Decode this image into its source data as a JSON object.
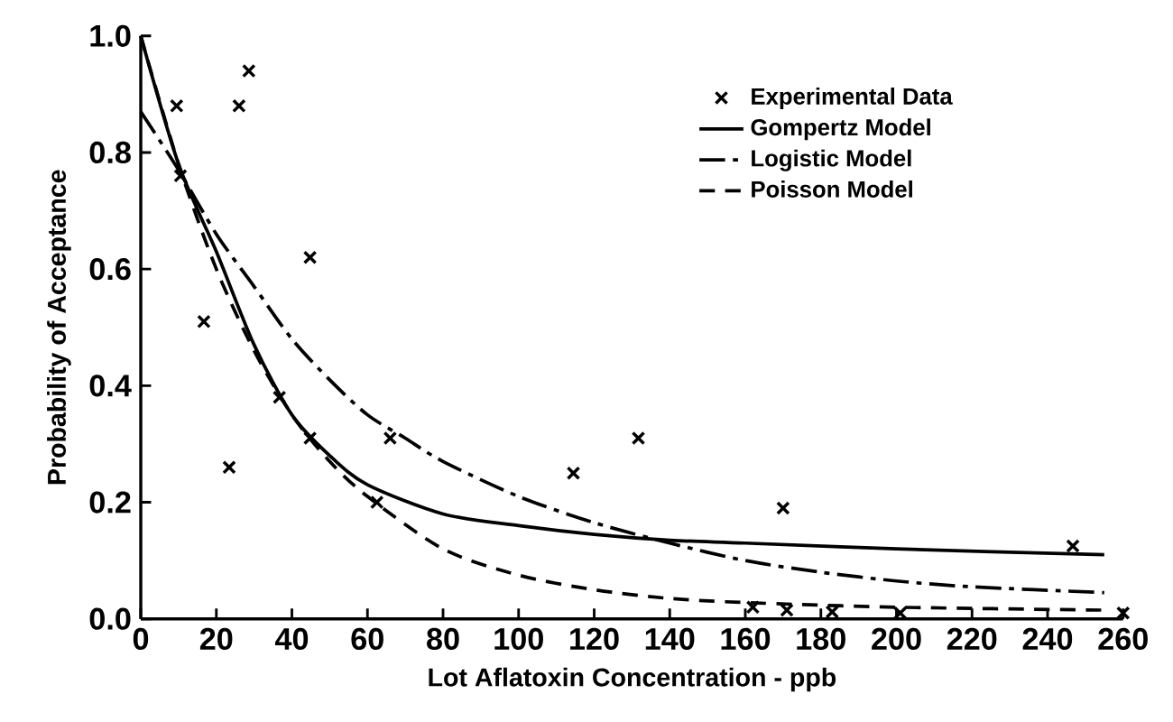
{
  "chart_data": {
    "type": "line",
    "xlabel": "Lot Aflatoxin Concentration - ppb",
    "ylabel": "Probability of Acceptance",
    "xlim": [
      0,
      260
    ],
    "ylim": [
      0,
      1.0
    ],
    "xticks": [
      0,
      20,
      40,
      60,
      80,
      100,
      120,
      140,
      160,
      180,
      200,
      220,
      240,
      260
    ],
    "yticks": [
      {
        "value": 0,
        "label": "0.0"
      },
      {
        "value": 0.2,
        "label": "0.2"
      },
      {
        "value": 0.4,
        "label": "0.4"
      },
      {
        "value": 0.6,
        "label": "0.6"
      },
      {
        "value": 0.8,
        "label": "0.8"
      },
      {
        "value": 1.0,
        "label": "1.0"
      }
    ],
    "legend": "top right",
    "grid": false,
    "series": [
      {
        "name": "Experimental Data",
        "type": "scatter",
        "marker": "cross",
        "color": "#000000",
        "x": [
          9.5,
          10.5,
          16.7,
          23.4,
          26,
          28.6,
          36.7,
          44.8,
          44.8,
          62.5,
          66,
          114.5,
          131.7,
          162,
          170,
          171,
          183,
          201,
          246.7,
          260
        ],
        "values": [
          0.88,
          0.76,
          0.51,
          0.26,
          0.88,
          0.94,
          0.38,
          0.62,
          0.31,
          0.2,
          0.31,
          0.25,
          0.31,
          0.02,
          0.19,
          0.015,
          0.012,
          0.01,
          0.125,
          0.01
        ]
      },
      {
        "name": "Gompertz Model",
        "line_style": "solid",
        "color": "#000000",
        "x": [
          0,
          10,
          20,
          30,
          40,
          50,
          60,
          80,
          100,
          120,
          140,
          160,
          200,
          255
        ],
        "values": [
          1.0,
          0.78,
          0.63,
          0.47,
          0.35,
          0.28,
          0.23,
          0.18,
          0.16,
          0.145,
          0.135,
          0.13,
          0.12,
          0.11
        ]
      },
      {
        "name": "Logistic Model",
        "line_style": "dashdot",
        "color": "#000000",
        "x": [
          0,
          10,
          20,
          30,
          40,
          50,
          60,
          70,
          80,
          100,
          120,
          140,
          160,
          180,
          200,
          220,
          255
        ],
        "values": [
          0.87,
          0.77,
          0.66,
          0.57,
          0.48,
          0.41,
          0.35,
          0.31,
          0.27,
          0.21,
          0.165,
          0.13,
          0.1,
          0.08,
          0.065,
          0.055,
          0.045
        ]
      },
      {
        "name": "Poisson Model",
        "line_style": "dashed",
        "color": "#000000",
        "x": [
          0,
          10,
          20,
          30,
          40,
          50,
          60,
          80,
          100,
          120,
          140,
          160,
          200,
          255
        ],
        "values": [
          1.0,
          0.78,
          0.6,
          0.46,
          0.35,
          0.27,
          0.21,
          0.12,
          0.075,
          0.05,
          0.035,
          0.028,
          0.02,
          0.015
        ]
      }
    ]
  }
}
